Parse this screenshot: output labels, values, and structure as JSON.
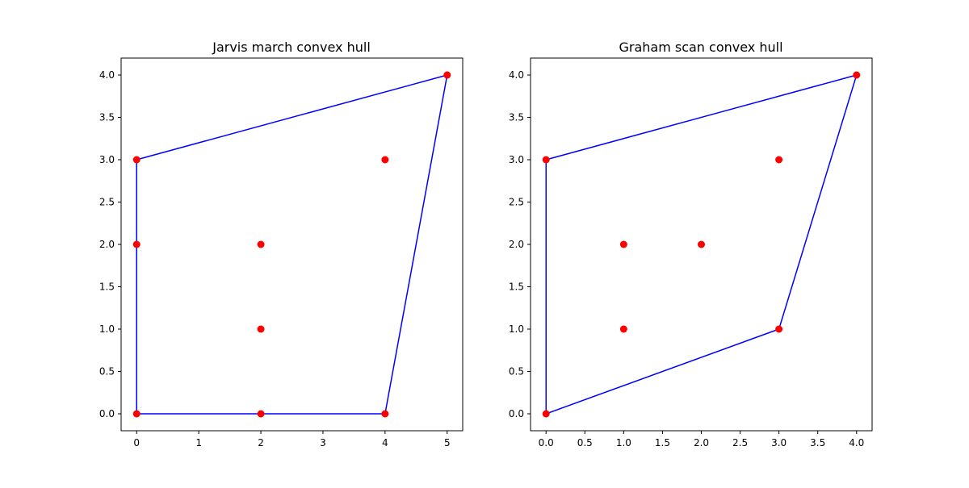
{
  "chart_data": [
    {
      "type": "scatter",
      "title": "Jarvis march convex hull",
      "xlabel": "",
      "ylabel": "",
      "xlim": [
        -0.25,
        5.25
      ],
      "ylim": [
        -0.2,
        4.2
      ],
      "xticks": [
        0,
        1,
        2,
        3,
        4,
        5
      ],
      "xtick_labels": [
        "0",
        "1",
        "2",
        "3",
        "4",
        "5"
      ],
      "yticks": [
        0,
        0.5,
        1,
        1.5,
        2,
        2.5,
        3,
        3.5,
        4
      ],
      "ytick_labels": [
        "0.0",
        "0.5",
        "1.0",
        "1.5",
        "2.0",
        "2.5",
        "3.0",
        "3.5",
        "4.0"
      ],
      "grid": false,
      "points": [
        {
          "x": 0,
          "y": 0
        },
        {
          "x": 2,
          "y": 0
        },
        {
          "x": 4,
          "y": 0
        },
        {
          "x": 0,
          "y": 2
        },
        {
          "x": 0,
          "y": 3
        },
        {
          "x": 2,
          "y": 1
        },
        {
          "x": 2,
          "y": 2
        },
        {
          "x": 4,
          "y": 3
        },
        {
          "x": 5,
          "y": 4
        }
      ],
      "hull": [
        {
          "x": 0,
          "y": 0
        },
        {
          "x": 2,
          "y": 0
        },
        {
          "x": 4,
          "y": 0
        },
        {
          "x": 5,
          "y": 4
        },
        {
          "x": 0,
          "y": 3
        },
        {
          "x": 0,
          "y": 2
        },
        {
          "x": 0,
          "y": 0
        }
      ],
      "point_color": "#ff0000",
      "hull_color": "#0000ff"
    },
    {
      "type": "scatter",
      "title": "Graham scan convex hull",
      "xlabel": "",
      "ylabel": "",
      "xlim": [
        -0.2,
        4.2
      ],
      "ylim": [
        -0.2,
        4.2
      ],
      "xticks": [
        0,
        0.5,
        1,
        1.5,
        2,
        2.5,
        3,
        3.5,
        4
      ],
      "xtick_labels": [
        "0.0",
        "0.5",
        "1.0",
        "1.5",
        "2.0",
        "2.5",
        "3.0",
        "3.5",
        "4.0"
      ],
      "yticks": [
        0,
        0.5,
        1,
        1.5,
        2,
        2.5,
        3,
        3.5,
        4
      ],
      "ytick_labels": [
        "0.0",
        "0.5",
        "1.0",
        "1.5",
        "2.0",
        "2.5",
        "3.0",
        "3.5",
        "4.0"
      ],
      "grid": false,
      "points": [
        {
          "x": 0,
          "y": 0
        },
        {
          "x": 1,
          "y": 1
        },
        {
          "x": 1,
          "y": 2
        },
        {
          "x": 2,
          "y": 2
        },
        {
          "x": 3,
          "y": 1
        },
        {
          "x": 3,
          "y": 3
        },
        {
          "x": 0,
          "y": 3
        },
        {
          "x": 4,
          "y": 4
        }
      ],
      "hull": [
        {
          "x": 0,
          "y": 0
        },
        {
          "x": 3,
          "y": 1
        },
        {
          "x": 4,
          "y": 4
        },
        {
          "x": 0,
          "y": 3
        },
        {
          "x": 0,
          "y": 0
        }
      ],
      "point_color": "#ff0000",
      "hull_color": "#0000ff"
    }
  ]
}
